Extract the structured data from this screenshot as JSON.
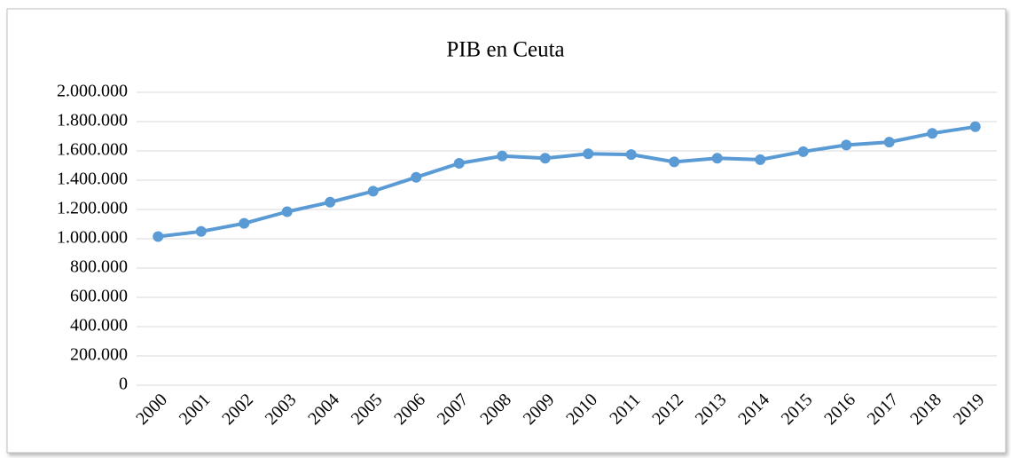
{
  "chart_data": {
    "type": "line",
    "title": "PIB en Ceuta",
    "categories": [
      "2000",
      "2001",
      "2002",
      "2003",
      "2004",
      "2005",
      "2006",
      "2007",
      "2008",
      "2009",
      "2010",
      "2011",
      "2012",
      "2013",
      "2014",
      "2015",
      "2016",
      "2017",
      "2018",
      "2019"
    ],
    "series": [
      {
        "name": "PIB",
        "color": "#5b9bd5",
        "values": [
          1015000,
          1050000,
          1105000,
          1185000,
          1250000,
          1325000,
          1420000,
          1515000,
          1565000,
          1550000,
          1580000,
          1575000,
          1525000,
          1550000,
          1540000,
          1595000,
          1640000,
          1660000,
          1720000,
          1765000
        ]
      }
    ],
    "ylim": [
      0,
      2000000
    ],
    "yticks": [
      0,
      {
        "value": 200000,
        "label": "200.000"
      },
      {
        "value": 400000,
        "label": "400.000"
      },
      {
        "value": 600000,
        "label": "600.000"
      },
      {
        "value": 800000,
        "label": "800.000"
      },
      {
        "value": 1000000,
        "label": "1.000.000"
      },
      {
        "value": 1200000,
        "label": "1.200.000"
      },
      {
        "value": 1400000,
        "label": "1.400.000"
      },
      {
        "value": 1600000,
        "label": "1.600.000"
      },
      {
        "value": 1800000,
        "label": "1.800.000"
      },
      {
        "value": 2000000,
        "label": "2.000.000"
      }
    ],
    "grid": true
  }
}
